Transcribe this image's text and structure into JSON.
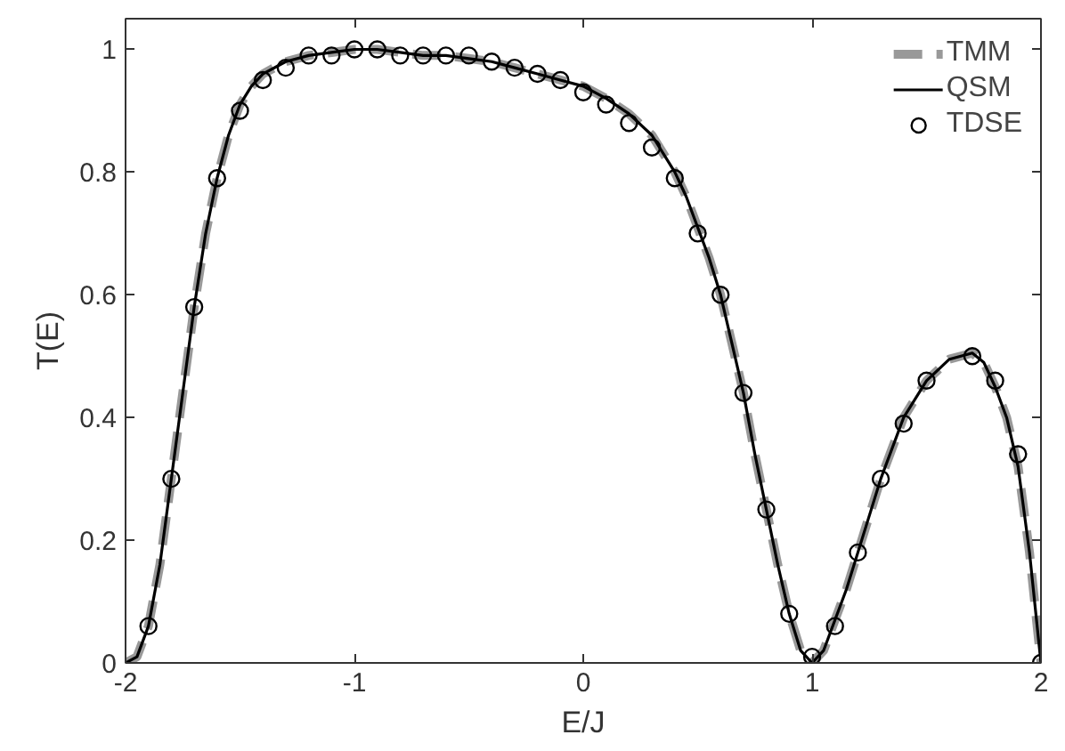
{
  "chart_data": {
    "type": "line",
    "xlabel": "E/J",
    "ylabel": "T(E)",
    "xlim": [
      -2,
      2
    ],
    "ylim": [
      0,
      1.05
    ],
    "xticks": [
      -2,
      -1,
      0,
      1,
      2
    ],
    "yticks": [
      0,
      0.2,
      0.4,
      0.6,
      0.8,
      1
    ],
    "grid": false,
    "legend": "top right",
    "x": [
      -2,
      -1.95,
      -1.9,
      -1.85,
      -1.8,
      -1.75,
      -1.7,
      -1.65,
      -1.6,
      -1.55,
      -1.5,
      -1.45,
      -1.4,
      -1.3,
      -1.2,
      -1.1,
      -1.0,
      -0.9,
      -0.8,
      -0.7,
      -0.6,
      -0.5,
      -0.4,
      -0.3,
      -0.2,
      -0.1,
      0,
      0.1,
      0.2,
      0.3,
      0.4,
      0.45,
      0.5,
      0.55,
      0.6,
      0.65,
      0.7,
      0.75,
      0.8,
      0.85,
      0.9,
      0.95,
      1.0,
      1.05,
      1.1,
      1.15,
      1.2,
      1.3,
      1.4,
      1.5,
      1.6,
      1.7,
      1.75,
      1.8,
      1.85,
      1.9,
      1.95,
      2.0
    ],
    "series": [
      {
        "name": "TMM",
        "color": "#999999",
        "line_style": "dashed",
        "values": [
          0,
          0.01,
          0.06,
          0.16,
          0.3,
          0.44,
          0.58,
          0.7,
          0.79,
          0.86,
          0.91,
          0.94,
          0.96,
          0.98,
          0.99,
          0.995,
          1.0,
          1.0,
          0.995,
          0.99,
          0.99,
          0.985,
          0.98,
          0.97,
          0.96,
          0.95,
          0.94,
          0.92,
          0.895,
          0.86,
          0.8,
          0.76,
          0.71,
          0.66,
          0.6,
          0.52,
          0.44,
          0.34,
          0.25,
          0.16,
          0.08,
          0.02,
          0.0,
          0.02,
          0.07,
          0.12,
          0.18,
          0.3,
          0.4,
          0.46,
          0.495,
          0.505,
          0.49,
          0.45,
          0.4,
          0.32,
          0.18,
          0.0
        ]
      },
      {
        "name": "QSM",
        "color": "#000000",
        "line_style": "solid",
        "values": [
          0,
          0.01,
          0.06,
          0.16,
          0.3,
          0.44,
          0.58,
          0.7,
          0.79,
          0.86,
          0.91,
          0.94,
          0.96,
          0.98,
          0.99,
          0.995,
          1.0,
          1.0,
          0.995,
          0.99,
          0.99,
          0.985,
          0.98,
          0.97,
          0.96,
          0.95,
          0.94,
          0.92,
          0.895,
          0.86,
          0.8,
          0.76,
          0.71,
          0.66,
          0.6,
          0.52,
          0.44,
          0.34,
          0.25,
          0.16,
          0.08,
          0.02,
          0.0,
          0.02,
          0.07,
          0.12,
          0.18,
          0.3,
          0.4,
          0.46,
          0.495,
          0.505,
          0.49,
          0.45,
          0.4,
          0.32,
          0.18,
          0.0
        ]
      },
      {
        "name": "TDSE",
        "type": "scatter",
        "marker": "circle",
        "color": "#000000",
        "x": [
          -1.9,
          -1.8,
          -1.7,
          -1.6,
          -1.5,
          -1.4,
          -1.3,
          -1.2,
          -1.1,
          -1.0,
          -0.9,
          -0.8,
          -0.7,
          -0.6,
          -0.5,
          -0.4,
          -0.3,
          -0.2,
          -0.1,
          0,
          0.1,
          0.2,
          0.3,
          0.4,
          0.5,
          0.6,
          0.7,
          0.8,
          0.9,
          1.0,
          1.1,
          1.2,
          1.3,
          1.4,
          1.5,
          1.7,
          1.8,
          1.9,
          2.0
        ],
        "values": [
          0.06,
          0.3,
          0.58,
          0.79,
          0.9,
          0.95,
          0.97,
          0.99,
          0.99,
          1.0,
          1.0,
          0.99,
          0.99,
          0.99,
          0.99,
          0.98,
          0.97,
          0.96,
          0.95,
          0.93,
          0.91,
          0.88,
          0.84,
          0.79,
          0.7,
          0.6,
          0.44,
          0.25,
          0.08,
          0.01,
          0.06,
          0.18,
          0.3,
          0.39,
          0.46,
          0.5,
          0.46,
          0.34,
          0.0
        ]
      }
    ]
  }
}
